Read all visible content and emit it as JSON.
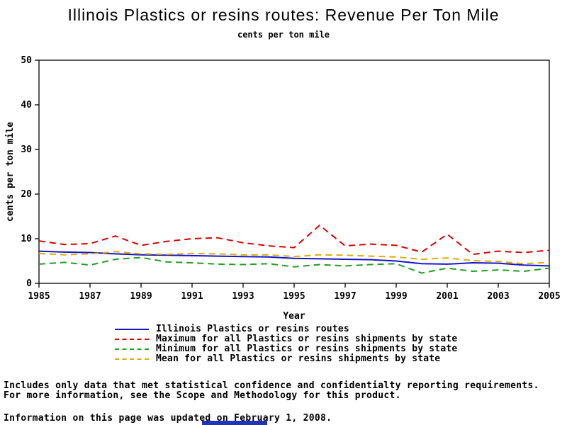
{
  "page": {
    "title": "Illinois Plastics or resins routes: Revenue Per Ton Mile",
    "subtitle": "cents per ton mile"
  },
  "chart_data": {
    "type": "line",
    "title": "Illinois Plastics or resins routes: Revenue Per Ton Mile",
    "subtitle": "cents per ton mile",
    "xlabel": "Year",
    "ylabel": "cents per ton mile",
    "xlim": [
      1985,
      2005
    ],
    "ylim": [
      0,
      50
    ],
    "xticks": [
      1985,
      1987,
      1989,
      1991,
      1993,
      1995,
      1997,
      1999,
      2001,
      2003,
      2005
    ],
    "yticks": [
      0,
      10,
      20,
      30,
      40,
      50
    ],
    "grid": false,
    "legend_position": "bottom",
    "x": [
      1985,
      1986,
      1987,
      1988,
      1989,
      1990,
      1991,
      1992,
      1993,
      1994,
      1995,
      1996,
      1997,
      1998,
      1999,
      2000,
      2001,
      2002,
      2003,
      2004,
      2005
    ],
    "series": [
      {
        "name": "Illinois Plastics or resins routes",
        "color": "#1515cc",
        "style": "solid",
        "values": [
          7.2,
          7.0,
          6.9,
          6.6,
          6.4,
          6.3,
          6.2,
          6.1,
          6.0,
          5.9,
          5.6,
          5.5,
          5.4,
          5.3,
          5.0,
          4.4,
          4.3,
          4.6,
          4.5,
          4.1,
          3.9
        ]
      },
      {
        "name": "Maximum for all Plastics or resins shipments by state",
        "color": "#dd0000",
        "style": "dashed",
        "values": [
          9.5,
          8.7,
          8.9,
          10.6,
          8.5,
          9.4,
          10.0,
          10.2,
          9.1,
          8.4,
          8.0,
          13.0,
          8.4,
          8.8,
          8.5,
          7.0,
          11.0,
          6.5,
          7.2,
          6.9,
          7.4
        ]
      },
      {
        "name": "Minimum for all Plastics or resins shipments by state",
        "color": "#1fa01f",
        "style": "dashed",
        "values": [
          4.3,
          4.7,
          4.1,
          5.4,
          5.8,
          4.8,
          4.6,
          4.3,
          4.2,
          4.4,
          3.7,
          4.2,
          3.9,
          4.2,
          4.4,
          2.3,
          3.4,
          2.7,
          3.0,
          2.7,
          3.4
        ]
      },
      {
        "name": "Mean for all Plastics or resins shipments by state",
        "color": "#e0ac00",
        "style": "dashed",
        "values": [
          6.7,
          6.4,
          6.6,
          7.1,
          6.6,
          6.5,
          6.7,
          6.6,
          6.4,
          6.4,
          6.0,
          6.4,
          6.3,
          6.1,
          5.9,
          5.4,
          5.7,
          5.1,
          4.9,
          4.4,
          4.7
        ]
      }
    ]
  },
  "footnotes": {
    "line1": "Includes only data that met statistical confidence and confidentialty reporting requirements.",
    "line2": "For more information, see the Scope and Methodology for this product.",
    "updated": "Information on this page was updated on February 1, 2008."
  }
}
